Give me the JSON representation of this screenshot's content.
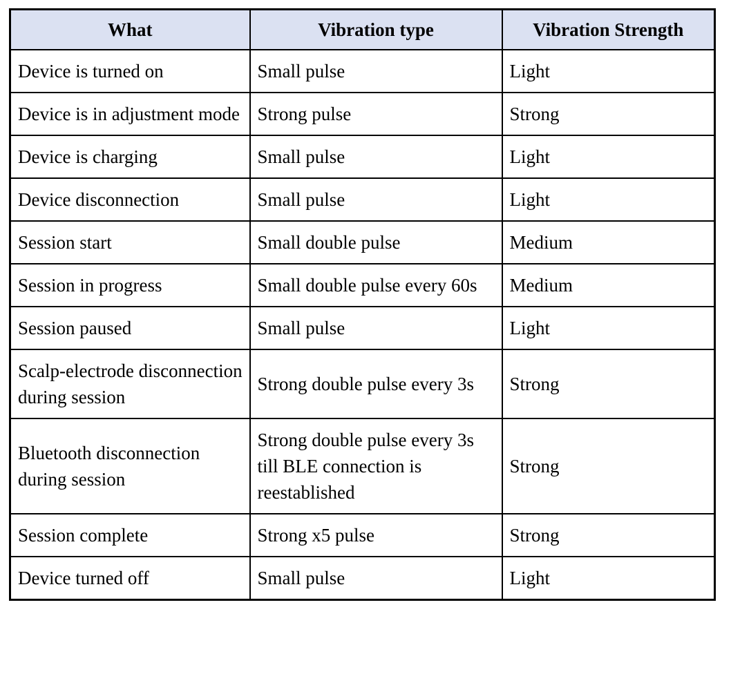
{
  "table": {
    "headers": {
      "what": "What",
      "type": "Vibration type",
      "strength": "Vibration Strength"
    },
    "rows": [
      {
        "what": "Device is turned on",
        "type": "Small pulse",
        "strength": "Light"
      },
      {
        "what": "Device is in adjustment mode",
        "type": "Strong pulse",
        "strength": "Strong"
      },
      {
        "what": "Device is charging",
        "type": "Small pulse",
        "strength": "Light"
      },
      {
        "what": "Device disconnection",
        "type": "Small pulse",
        "strength": "Light"
      },
      {
        "what": "Session start",
        "type": "Small double pulse",
        "strength": "Medium"
      },
      {
        "what": "Session in progress",
        "type": "Small double pulse every 60s",
        "strength": "Medium"
      },
      {
        "what": "Session paused",
        "type": "Small pulse",
        "strength": "Light"
      },
      {
        "what": "Scalp-electrode disconnection during session",
        "type": "Strong double pulse every 3s",
        "strength": "Strong"
      },
      {
        "what": "Bluetooth disconnection during session",
        "type": "Strong double pulse every 3s till BLE connection is reestablished",
        "strength": "Strong"
      },
      {
        "what": "Session complete",
        "type": "Strong x5 pulse",
        "strength": "Strong"
      },
      {
        "what": "Device turned off",
        "type": "Small pulse",
        "strength": "Light"
      }
    ],
    "colors": {
      "header_bg": "#dbe1f2",
      "border": "#000000",
      "text": "#000000",
      "page_bg": "#ffffff"
    }
  }
}
